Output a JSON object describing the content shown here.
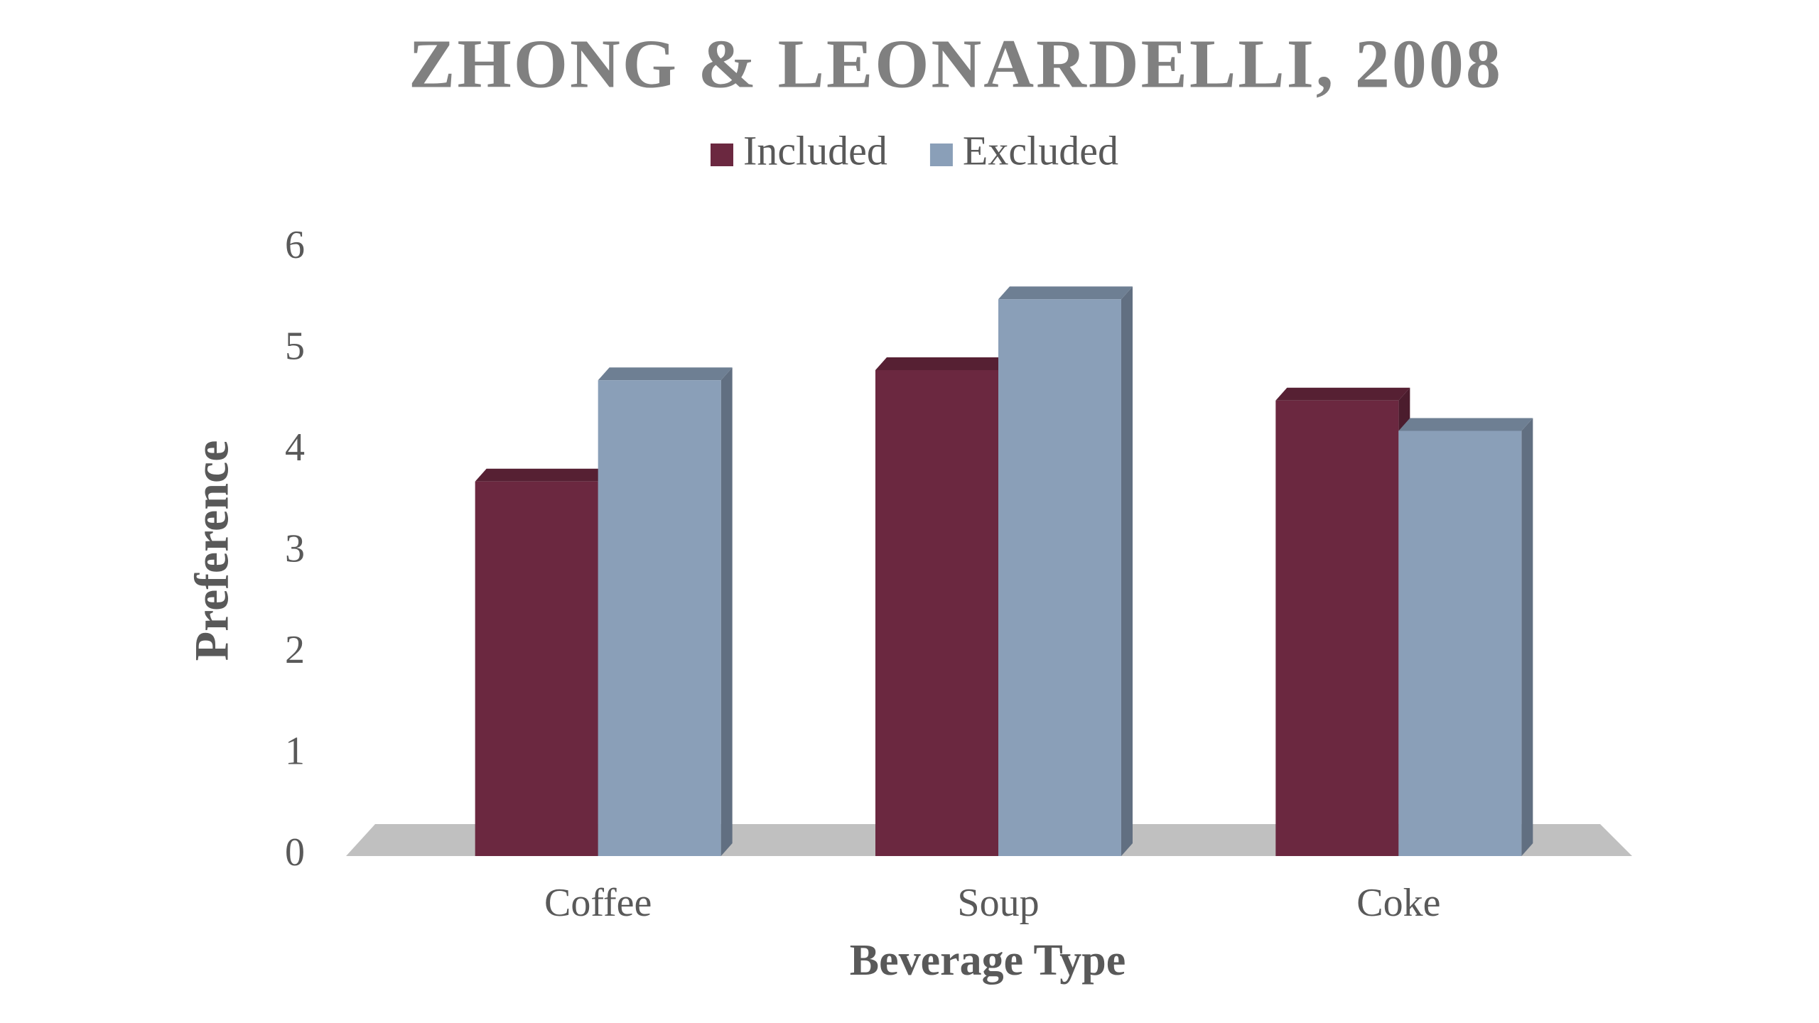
{
  "chart_data": {
    "type": "bar3d",
    "title": "ZHONG & LEONARDELLI, 2008",
    "x_label": "Beverage Type",
    "y_label": "Preference",
    "categories": [
      "Coffee",
      "Soup",
      "Coke"
    ],
    "series": [
      {
        "name": "Included",
        "color": "#6b2840",
        "values": [
          3.7,
          4.8,
          4.5
        ]
      },
      {
        "name": "Excluded",
        "color": "#8a9fb8",
        "values": [
          4.7,
          5.5,
          4.2
        ]
      }
    ],
    "ylim": [
      0,
      6
    ],
    "yticks": [
      0,
      1,
      2,
      3,
      4,
      5,
      6
    ],
    "legend": "top",
    "grid": false
  }
}
